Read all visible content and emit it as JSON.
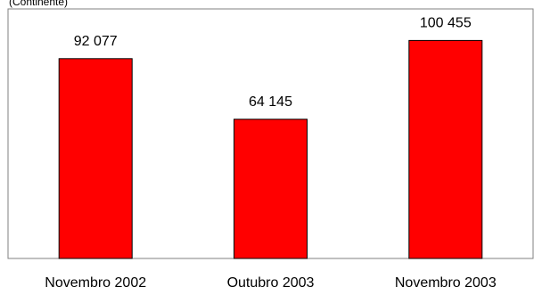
{
  "chart_data": {
    "type": "bar",
    "subtitle": "(Continente)",
    "categories": [
      "Novembro 2002",
      "Outubro 2003",
      "Novembro 2003"
    ],
    "values": [
      92077,
      64145,
      100455
    ],
    "value_labels": [
      "92 077",
      "64 145",
      "100 455"
    ],
    "ylim": [
      0,
      115000
    ],
    "grid": false,
    "legend": "none",
    "bar_color": "#ff0000",
    "bar_edge_color": "#000000",
    "plot_border_color": "#808080"
  }
}
